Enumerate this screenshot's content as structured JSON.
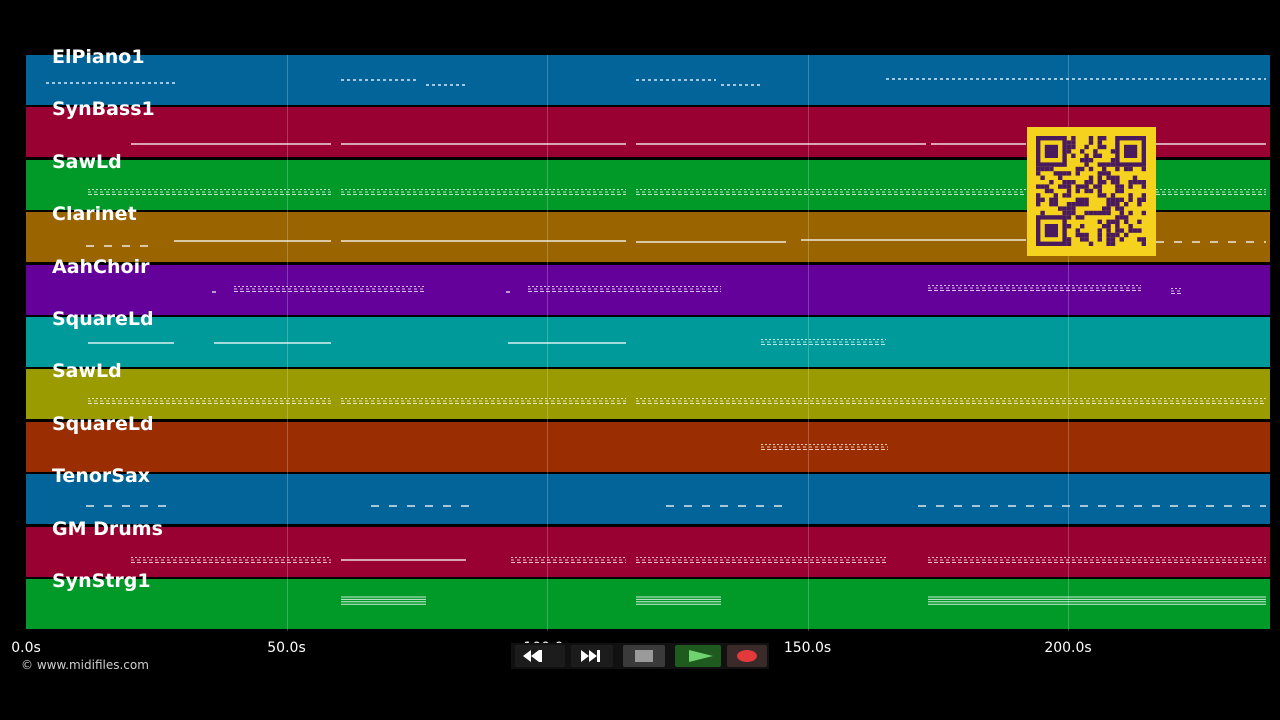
{
  "tracks": [
    {
      "name": "ElPiano1",
      "color": "#036499"
    },
    {
      "name": "SynBass1",
      "color": "#9a0133"
    },
    {
      "name": "SawLd",
      "color": "#019a29"
    },
    {
      "name": "Clarinet",
      "color": "#9a6401"
    },
    {
      "name": "AahChoir",
      "color": "#63019a"
    },
    {
      "name": "SquareLd",
      "color": "#019a9a"
    },
    {
      "name": "SawLd",
      "color": "#9a9a01"
    },
    {
      "name": "SquareLd",
      "color": "#9a2d01"
    },
    {
      "name": "TenorSax",
      "color": "#036499"
    },
    {
      "name": "GM Drums",
      "color": "#9a0133"
    },
    {
      "name": "SynStrg1",
      "color": "#019a29"
    }
  ],
  "timeline": {
    "ticks": [
      "0.0s",
      "50.0s",
      "100.0s",
      "150.0s",
      "200.0s"
    ]
  },
  "credit": "© www.midifiles.com",
  "transport": {
    "rewind": "rewind-icon",
    "fast_forward": "fast-forward-icon",
    "stop": "stop-icon",
    "play": "play-icon",
    "record": "record-icon"
  },
  "qr_code": "qr-code"
}
